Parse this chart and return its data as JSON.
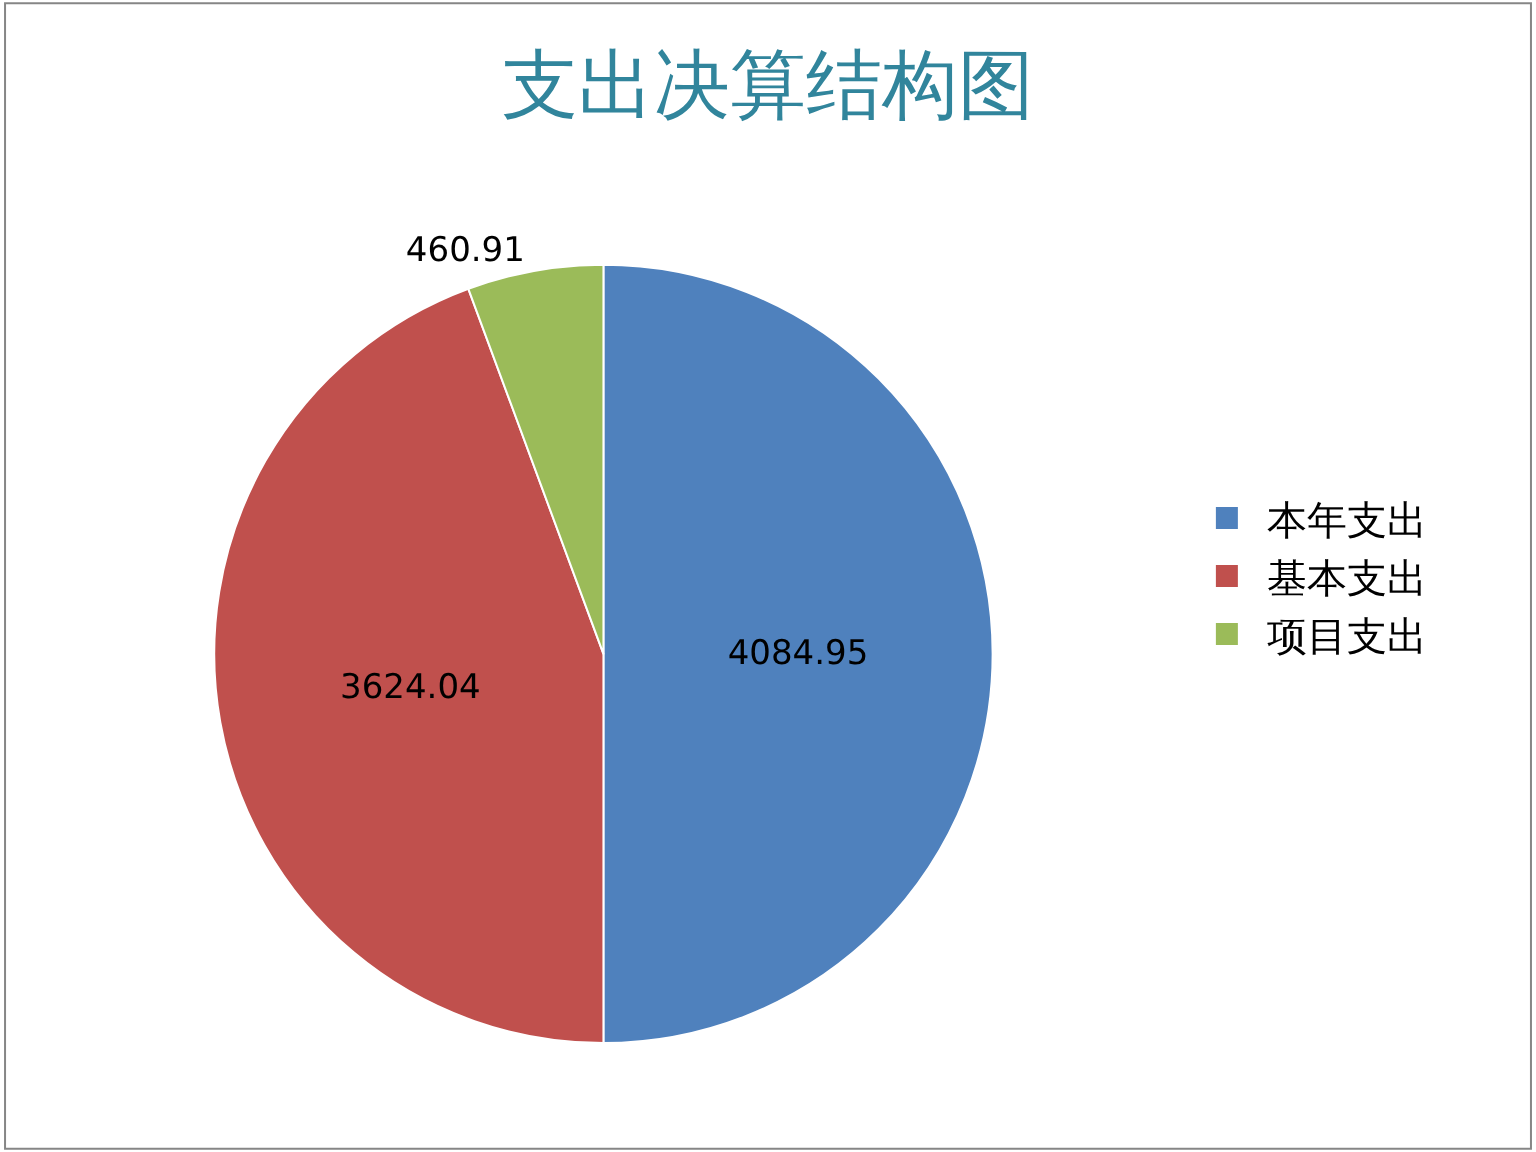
{
  "chart_data": {
    "type": "pie",
    "title": "支出决算结构图",
    "categories": [
      "本年支出",
      "基本支出",
      "项目支出"
    ],
    "values": [
      4084.95,
      3624.04,
      460.91
    ],
    "colors": [
      "#4f81bd",
      "#c0504d",
      "#9bbb59"
    ],
    "data_labels": true,
    "legend": "right"
  }
}
